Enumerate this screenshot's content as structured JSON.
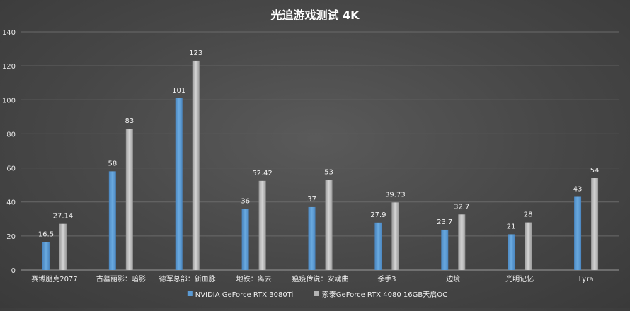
{
  "chart_data": {
    "type": "bar",
    "title": "光追游戏测试 4K",
    "categories": [
      "赛博朋克2077",
      "古墓丽影：暗影",
      "德军总部：新血脉",
      "地铁：离去",
      "瘟疫传说：安魂曲",
      "杀手3",
      "边境",
      "光明记忆",
      "Lyra"
    ],
    "series": [
      {
        "name": "NVIDIA GeForce RTX 3080Ti",
        "values": [
          16.5,
          58,
          101,
          36,
          37,
          27.9,
          23.7,
          21,
          43
        ],
        "color": "#5b9bd5"
      },
      {
        "name": "索泰GeForce RTX 4080 16GB天启OC",
        "values": [
          27.14,
          83,
          123,
          52.42,
          53,
          39.73,
          32.7,
          28,
          54
        ],
        "color": "#b3b3b3"
      }
    ],
    "ylim": [
      0,
      140
    ],
    "yticks": [
      0,
      20,
      40,
      60,
      80,
      100,
      120,
      140
    ],
    "grid": true,
    "legend": "bottom"
  }
}
